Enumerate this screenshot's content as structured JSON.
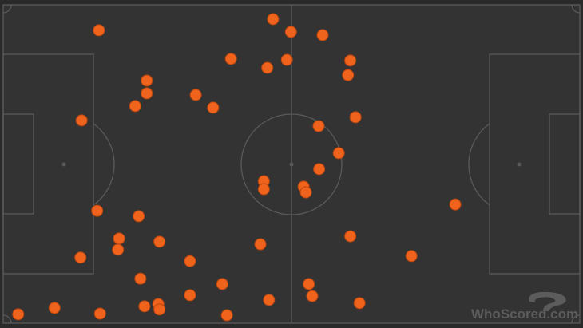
{
  "watermark": "WhoScored.com",
  "colors": {
    "background": "#333333",
    "lines": "#5a5a5a",
    "marker": "#f0631c"
  },
  "chart_data": {
    "type": "scatter",
    "xlim": [
      0,
      100
    ],
    "ylim": [
      0,
      100
    ],
    "grid": false,
    "points": [
      [
        16.6,
        8.0
      ],
      [
        46.8,
        4.5
      ],
      [
        49.9,
        8.5
      ],
      [
        55.4,
        9.5
      ],
      [
        39.5,
        17.0
      ],
      [
        45.8,
        19.8
      ],
      [
        49.2,
        17.3
      ],
      [
        60.2,
        17.5
      ],
      [
        59.8,
        22.1
      ],
      [
        24.9,
        23.8
      ],
      [
        24.9,
        27.8
      ],
      [
        22.9,
        31.8
      ],
      [
        33.4,
        28.3
      ],
      [
        36.4,
        32.3
      ],
      [
        13.6,
        36.3
      ],
      [
        61.1,
        35.3
      ],
      [
        54.7,
        38.1
      ],
      [
        58.2,
        46.6
      ],
      [
        54.8,
        51.6
      ],
      [
        45.2,
        55.4
      ],
      [
        45.2,
        57.9
      ],
      [
        52.1,
        57.1
      ],
      [
        52.5,
        58.9
      ],
      [
        78.4,
        62.7
      ],
      [
        16.3,
        64.7
      ],
      [
        23.5,
        66.4
      ],
      [
        20.1,
        73.4
      ],
      [
        19.9,
        76.9
      ],
      [
        27.1,
        74.4
      ],
      [
        13.4,
        79.4
      ],
      [
        44.6,
        75.2
      ],
      [
        60.2,
        72.7
      ],
      [
        70.8,
        78.9
      ],
      [
        32.4,
        80.5
      ],
      [
        23.8,
        86.0
      ],
      [
        38.0,
        87.7
      ],
      [
        53.0,
        87.7
      ],
      [
        53.6,
        91.5
      ],
      [
        32.4,
        91.2
      ],
      [
        46.1,
        92.7
      ],
      [
        61.8,
        93.7
      ],
      [
        2.6,
        97.2
      ],
      [
        8.9,
        95.2
      ],
      [
        16.8,
        97.0
      ],
      [
        24.5,
        94.7
      ],
      [
        26.9,
        94.0
      ],
      [
        27.1,
        95.7
      ],
      [
        38.8,
        97.5
      ]
    ]
  }
}
